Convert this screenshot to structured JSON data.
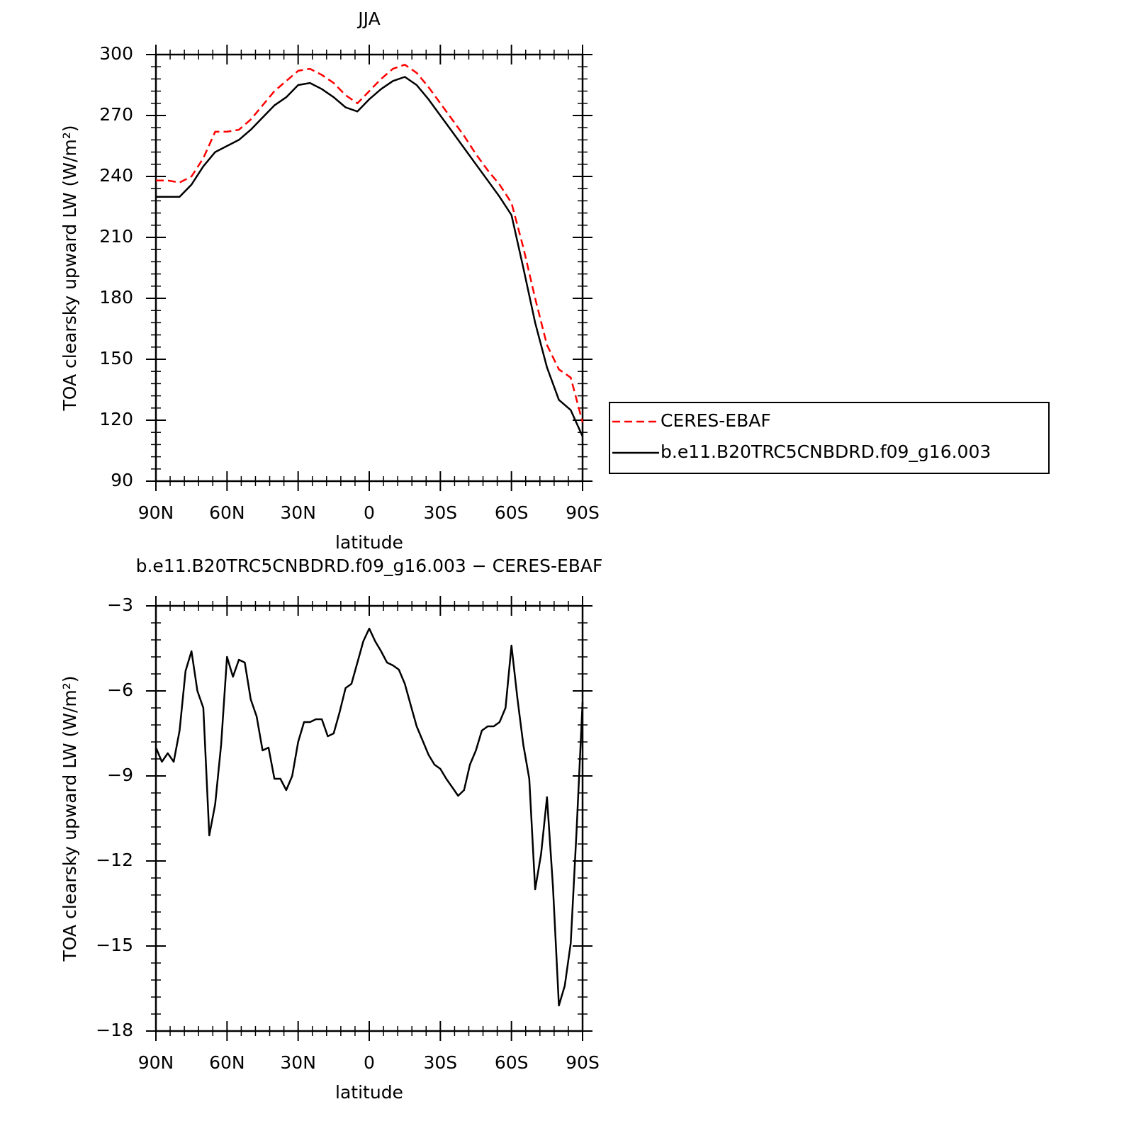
{
  "chart_data": [
    {
      "type": "line",
      "title": "JJA",
      "xlabel": "latitude",
      "ylabel": "TOA clearsky upward LW (W/m²)",
      "x": [
        90,
        85,
        80,
        75,
        70,
        65,
        60,
        55,
        50,
        45,
        40,
        35,
        30,
        25,
        20,
        15,
        10,
        5,
        0,
        -5,
        -10,
        -15,
        -20,
        -25,
        -30,
        -35,
        -40,
        -45,
        -50,
        -55,
        -60,
        -65,
        -70,
        -75,
        -80,
        -85,
        -90
      ],
      "series": [
        {
          "name": "CERES-EBAF",
          "color": "#ff0000",
          "dash": true,
          "values": [
            238,
            238,
            237,
            240,
            249,
            262,
            262,
            263,
            268,
            275,
            282,
            287,
            292,
            293,
            290,
            286,
            280,
            276,
            282,
            288,
            293,
            295,
            291,
            284,
            276,
            268,
            260,
            251,
            243,
            236,
            227,
            205,
            180,
            157,
            145,
            141,
            119
          ]
        },
        {
          "name": "b.e11.B20TRC5CNBDRD.f09_g16.003",
          "color": "#000000",
          "dash": false,
          "values": [
            230,
            230,
            230,
            236,
            245,
            252,
            255,
            258,
            263,
            269,
            275,
            279,
            285,
            286,
            283,
            279,
            274,
            272,
            278,
            283,
            287,
            289,
            285,
            278,
            270,
            262,
            254,
            246,
            238,
            230,
            221,
            195,
            168,
            146,
            130,
            125,
            112
          ]
        }
      ],
      "xlim": [
        90,
        -90
      ],
      "xticks": [
        {
          "value": 90,
          "label": "90N"
        },
        {
          "value": 60,
          "label": "60N"
        },
        {
          "value": 30,
          "label": "30N"
        },
        0,
        {
          "value": -30,
          "label": "30S"
        },
        {
          "value": -60,
          "label": "60S"
        },
        {
          "value": -90,
          "label": "90S"
        }
      ],
      "ylim": [
        90,
        300
      ],
      "yticks": [
        90,
        120,
        150,
        180,
        210,
        240,
        270,
        300
      ],
      "grid": false
    },
    {
      "type": "line",
      "title": "b.e11.B20TRC5CNBDRD.f09_g16.003 − CERES-EBAF",
      "xlabel": "latitude",
      "ylabel": "TOA clearsky upward LW (W/m²)",
      "x": [
        90,
        87.5,
        85,
        82.5,
        80,
        77.5,
        75,
        72.5,
        70,
        67.5,
        65,
        62.5,
        60,
        57.5,
        55,
        52.5,
        50,
        47.5,
        45,
        42.5,
        40,
        37.5,
        35,
        32.5,
        30,
        27.5,
        25,
        22.5,
        20,
        17.5,
        15,
        12.5,
        10,
        7.5,
        5,
        2.5,
        0,
        -2.5,
        -5,
        -7.5,
        -10,
        -12.5,
        -15,
        -17.5,
        -20,
        -22.5,
        -25,
        -27.5,
        -30,
        -32.5,
        -35,
        -37.5,
        -40,
        -42.5,
        -45,
        -47.5,
        -50,
        -52.5,
        -55,
        -57.5,
        -60,
        -62.5,
        -65,
        -67.5,
        -70,
        -72.5,
        -75,
        -77.5,
        -80,
        -82.5,
        -85,
        -87.5,
        -90
      ],
      "color": "#000000",
      "values": [
        -8.0,
        -8.5,
        -8.2,
        -8.5,
        -7.4,
        -5.3,
        -4.6,
        -6.0,
        -6.6,
        -11.1,
        -10.0,
        -7.9,
        -4.8,
        -5.5,
        -4.9,
        -5.0,
        -6.3,
        -6.9,
        -8.1,
        -8.0,
        -9.1,
        -9.1,
        -9.5,
        -9.0,
        -7.8,
        -7.1,
        -7.1,
        -7.0,
        -7.0,
        -7.6,
        -7.5,
        -6.75,
        -5.9,
        -5.75,
        -5.0,
        -4.25,
        -3.8,
        -4.25,
        -4.6,
        -5.0,
        -5.1,
        -5.25,
        -5.75,
        -6.5,
        -7.25,
        -7.75,
        -8.25,
        -8.6,
        -8.75,
        -9.1,
        -9.4,
        -9.7,
        -9.5,
        -8.6,
        -8.1,
        -7.4,
        -7.25,
        -7.25,
        -7.1,
        -6.6,
        -4.4,
        -6.25,
        -7.9,
        -9.1,
        -13.0,
        -11.75,
        -9.75,
        -12.9,
        -17.1,
        -16.4,
        -14.9,
        -10.9,
        -6.4
      ],
      "xlim": [
        90,
        -90
      ],
      "xticks": [
        {
          "value": 90,
          "label": "90N"
        },
        {
          "value": 60,
          "label": "60N"
        },
        {
          "value": 30,
          "label": "30N"
        },
        0,
        {
          "value": -30,
          "label": "30S"
        },
        {
          "value": -60,
          "label": "60S"
        },
        {
          "value": -90,
          "label": "90S"
        }
      ],
      "ylim": [
        -18,
        -3
      ],
      "yticks": [
        {
          "value": -18,
          "label": "−18"
        },
        {
          "value": -15,
          "label": "−15"
        },
        {
          "value": -12,
          "label": "−12"
        },
        {
          "value": -9,
          "label": "−9"
        },
        {
          "value": -6,
          "label": "−6"
        },
        {
          "value": -3,
          "label": "−3"
        }
      ],
      "grid": false
    }
  ]
}
